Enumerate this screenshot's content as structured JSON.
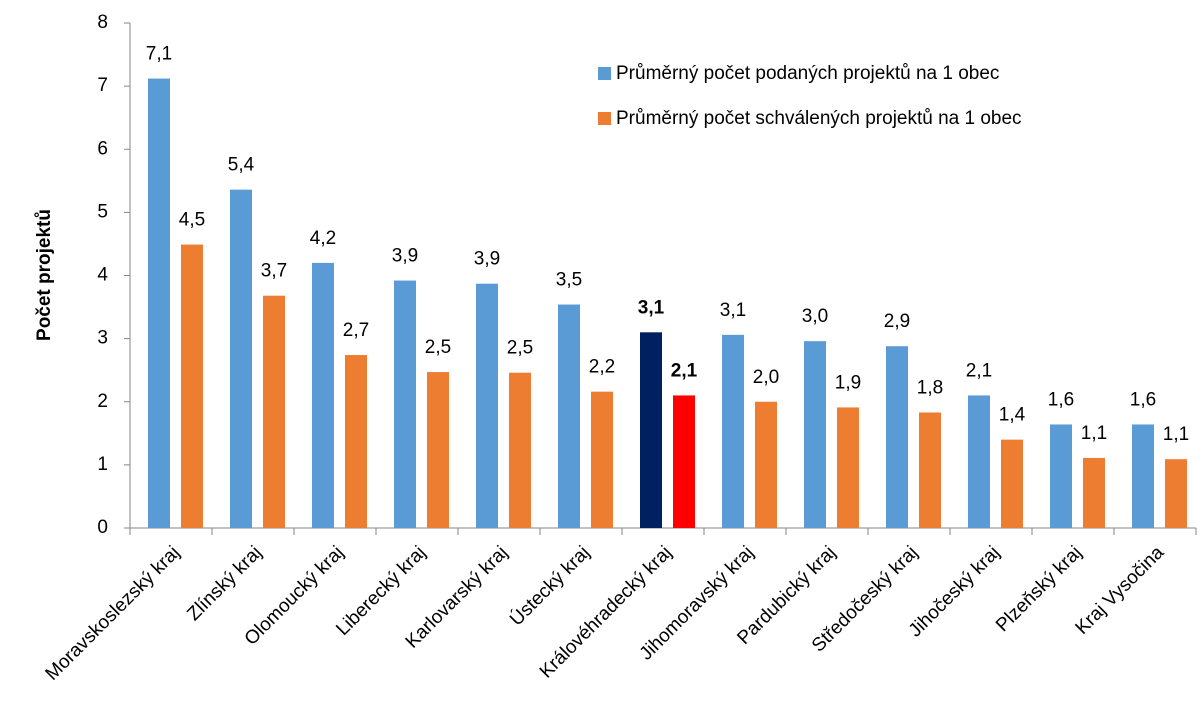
{
  "chart_data": {
    "type": "bar",
    "y_axis_label": "Počet projektů",
    "categories": [
      "Moravskoslezský kraj",
      "Zlínský kraj",
      "Olomoucký kraj",
      "Liberecký kraj",
      "Karlovarský kraj",
      "Ústecký kraj",
      "Královéhradecký kraj",
      "Jihomoravský kraj",
      "Pardubický kraj",
      "Středočeský kraj",
      "Jihočeský kraj",
      "Plzeňský kraj",
      "Kraj Vysočina"
    ],
    "series": [
      {
        "name": "Průměrný počet podaných projektů na 1 obec",
        "color": "#5b9bd5",
        "highlight_color": "#002060",
        "values": [
          7.12,
          5.36,
          4.2,
          3.92,
          3.87,
          3.54,
          3.1,
          3.06,
          2.96,
          2.88,
          2.1,
          1.64,
          1.64
        ],
        "value_labels": [
          "7,1",
          "5,4",
          "4,2",
          "3,9",
          "3,9",
          "3,5",
          "3,1",
          "3,1",
          "3,0",
          "2,9",
          "2,1",
          "1,6",
          "1,6"
        ]
      },
      {
        "name": "Průměrný počet schválených projektů na 1 obec",
        "color": "#ed7d31",
        "highlight_color": "#ff0000",
        "values": [
          4.49,
          3.68,
          2.74,
          2.47,
          2.46,
          2.16,
          2.1,
          2.0,
          1.91,
          1.83,
          1.4,
          1.11,
          1.09
        ],
        "value_labels": [
          "4,5",
          "3,7",
          "2,7",
          "2,5",
          "2,5",
          "2,2",
          "2,1",
          "2,0",
          "1,9",
          "1,8",
          "1,4",
          "1,1",
          "1,1"
        ]
      }
    ],
    "highlight_index": 6,
    "ylim": [
      0,
      8
    ],
    "yticks": [
      0,
      1,
      2,
      3,
      4,
      5,
      6,
      7,
      8
    ],
    "grid": false,
    "legend": "top-right"
  }
}
